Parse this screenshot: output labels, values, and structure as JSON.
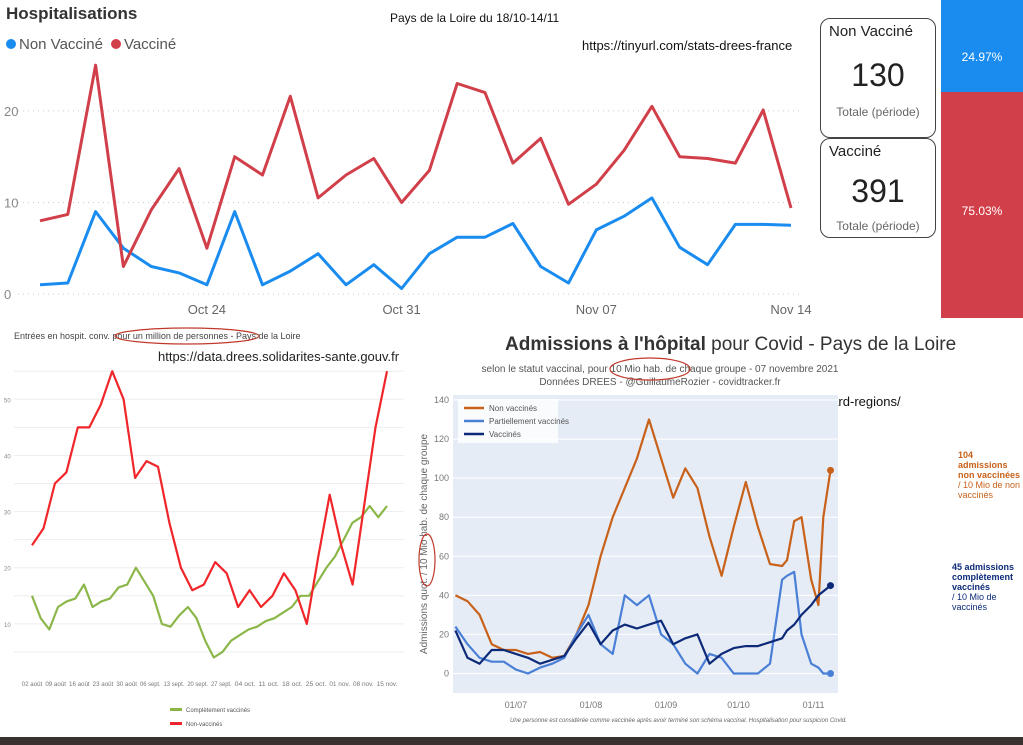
{
  "top": {
    "title": "Hospitalisations",
    "subtitle": "Pays de la Loire du 18/10-14/11",
    "url": "https://tinyurl.com/stats-drees-france",
    "kpi": {
      "non_vaccine": {
        "label": "Non Vacciné",
        "value": "130",
        "caption": "Totale (période)",
        "share": "24.97%"
      },
      "vaccine": {
        "label": "Vacciné",
        "value": "391",
        "caption": "Totale (période)",
        "share": "75.03%"
      }
    }
  },
  "bottom_left": {
    "url": "https://data.drees.solidarites-sante.gouv.fr"
  },
  "bottom_right": {
    "title_bold": "Admissions à l'hôpital",
    "title_rest": " pour Covid - Pays de la Loire",
    "subtitle1": "selon le statut vaccinal, pour 10 Mio hab. de chaque groupe - 07 novembre 2021",
    "subtitle2": "Données DREES - @GuillaumeRozier - covidtracker.fr",
    "url": "https://covidtracker.fr/dashboard-regions/",
    "ann_nv": [
      "104 admissions",
      "non vaccinées",
      "/ 10 Mio de non vaccinés"
    ],
    "ann_v": [
      "45 admissions",
      "complètement vaccinés",
      "/ 10 Mio de vaccinés"
    ],
    "footnote": "Une personne est considérée comme vaccinée après avoir terminé son schéma vaccinal. Hospitalisation pour suspicion Covid."
  },
  "colors": {
    "blue": "#1a8cf0",
    "red": "#d1404a",
    "green": "#8bb74a",
    "brightred": "#f0262a",
    "orange": "#c8611a",
    "lightblue": "#4a7fd6",
    "navy": "#0c2a78"
  },
  "chart_data": [
    {
      "type": "line",
      "title": "Hospitalisations",
      "categories_ticks": [
        "Oct 24",
        "Oct 31",
        "Nov 07",
        "Nov 14"
      ],
      "x_start": "Oct 18",
      "x_end": "Nov 14",
      "ylim": [
        0,
        26
      ],
      "yticks": [
        0,
        10,
        20
      ],
      "series": [
        {
          "name": "Non Vacciné",
          "values": [
            1,
            1.2,
            9,
            5,
            3,
            2.3,
            1,
            9,
            1,
            2.5,
            4.4,
            1,
            3.2,
            0.6,
            4.4,
            6.2,
            6.2,
            7.7,
            3,
            1.2,
            7,
            8.5,
            10.5,
            5.1,
            3.2,
            7.6,
            7.6,
            7.5
          ]
        },
        {
          "name": "Vacciné",
          "values": [
            8,
            8.7,
            25,
            3,
            9.2,
            13.7,
            5,
            15,
            13,
            21.6,
            10.5,
            13,
            14.8,
            10,
            13.5,
            23,
            22,
            14.3,
            17,
            9.8,
            12,
            15.7,
            20.5,
            15,
            14.8,
            14.3,
            20.1,
            9.4
          ]
        }
      ]
    },
    {
      "type": "line",
      "title": "Entrées en hospit. conv. pour un million de personnes - Pays de la Loire",
      "xticks": [
        "02 août",
        "09 août",
        "16 août",
        "23 août",
        "30 août",
        "06 sept.",
        "13 sept.",
        "20 sept.",
        "27 sept.",
        "04 oct.",
        "11 oct.",
        "18 oct.",
        "25 oct.",
        "01 nov.",
        "08 nov.",
        "15 nov."
      ],
      "ylim": [
        0,
        57
      ],
      "yticks": [
        10,
        20,
        30,
        40,
        50
      ],
      "series": [
        {
          "name": "Complètement vaccinés",
          "values": [
            15,
            11,
            9,
            13,
            14,
            14.5,
            17,
            13,
            14,
            14.5,
            16.5,
            17,
            20,
            17.5,
            15,
            10,
            9.5,
            11.5,
            13,
            11,
            7,
            4,
            5,
            7,
            8,
            9,
            9.5,
            10.5,
            11,
            12,
            13,
            15,
            15,
            17.5,
            20,
            22,
            25,
            28,
            29,
            31,
            29,
            31
          ]
        },
        {
          "name": "Non-vaccinés",
          "values": [
            24,
            27,
            35,
            37,
            45,
            45,
            49,
            55,
            50,
            36,
            39,
            38,
            28,
            20,
            16,
            17,
            21,
            19,
            13,
            16,
            13,
            15,
            19,
            16,
            10,
            22,
            33,
            24,
            17,
            31,
            45,
            55
          ]
        }
      ]
    },
    {
      "type": "line",
      "title": "Admissions à l'hôpital pour Covid - Pays de la Loire",
      "ylabel": "Admissions quot. / 10 Mio hab. de chaque groupe",
      "xticks": [
        "01/07",
        "01/08",
        "01/09",
        "01/10",
        "01/11"
      ],
      "ylim": [
        -10,
        140
      ],
      "yticks": [
        0,
        20,
        40,
        60,
        80,
        100,
        120,
        140
      ],
      "x_days_from_jul1": [
        -25,
        -20,
        -15,
        -10,
        -5,
        0,
        5,
        10,
        15,
        20,
        25,
        30,
        35,
        40,
        45,
        50,
        55,
        60,
        65,
        70,
        75,
        80,
        85,
        90,
        95,
        100,
        105,
        110,
        112,
        115,
        118,
        122,
        125,
        127,
        130
      ],
      "series": [
        {
          "name": "Non vaccinés",
          "values": [
            40,
            37,
            30,
            15,
            12,
            12,
            10,
            11,
            8,
            9,
            20,
            35,
            60,
            80,
            95,
            110,
            130,
            110,
            90,
            105,
            95,
            70,
            50,
            75,
            98,
            75,
            56,
            55,
            58,
            78,
            80,
            48,
            35,
            80,
            104
          ]
        },
        {
          "name": "Partiellement vaccinés",
          "values": [
            24,
            15,
            8,
            6,
            6,
            2,
            0,
            3,
            5,
            8,
            20,
            30,
            15,
            10,
            40,
            35,
            40,
            20,
            15,
            5,
            0,
            10,
            8,
            0,
            0,
            0,
            5,
            48,
            50,
            52,
            20,
            5,
            3,
            0,
            0
          ]
        },
        {
          "name": "Vaccinés",
          "values": [
            22,
            8,
            5,
            12,
            12,
            10,
            8,
            5,
            7,
            9,
            18,
            26,
            15,
            22,
            25,
            23,
            25,
            27,
            15,
            18,
            20,
            5,
            10,
            13,
            14,
            14,
            16,
            18,
            22,
            25,
            30,
            35,
            40,
            42,
            45
          ]
        }
      ]
    }
  ]
}
